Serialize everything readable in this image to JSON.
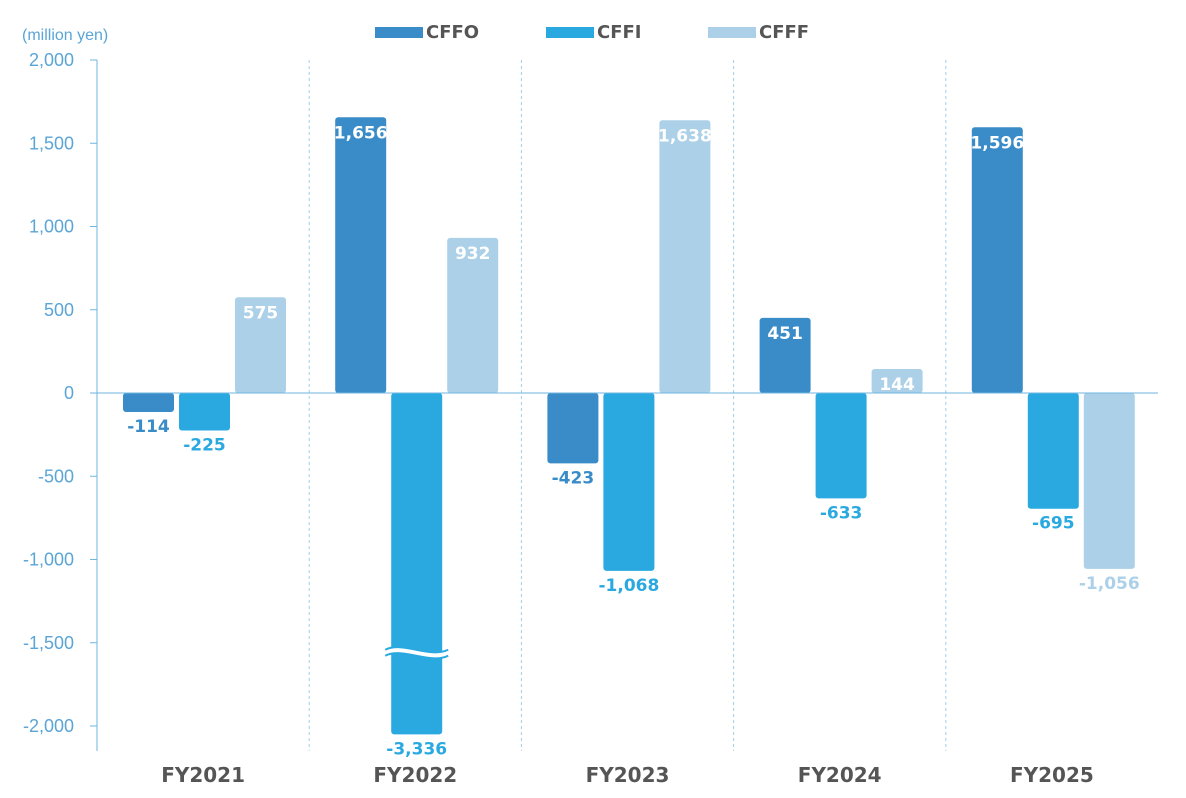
{
  "chart_data": {
    "type": "bar",
    "unit_label": "(million yen)",
    "categories": [
      "FY2021",
      "FY2022",
      "FY2023",
      "FY2024",
      "FY2025"
    ],
    "series": [
      {
        "name": "CFFO",
        "color": "#3a8cc8",
        "values": [
          -114,
          1656,
          -423,
          451,
          1596
        ]
      },
      {
        "name": "CFFI",
        "color": "#2aa9e1",
        "values": [
          -225,
          -3336,
          -1068,
          -633,
          -695
        ]
      },
      {
        "name": "CFFF",
        "color": "#abd0e8",
        "values": [
          575,
          932,
          1638,
          144,
          -1056
        ]
      }
    ],
    "data_labels": [
      [
        "-114",
        "1,656",
        "-423",
        "451",
        "1,596"
      ],
      [
        "-225",
        "-3,336",
        "-1,068",
        "-633",
        "-695"
      ],
      [
        "575",
        "932",
        "1,638",
        "144",
        "-1,056"
      ]
    ],
    "ylim": [
      -2150,
      2000
    ],
    "yticks": [
      2000,
      1500,
      1000,
      500,
      0,
      -500,
      -1000,
      -1500,
      -2000
    ],
    "ytick_labels": [
      "2,000",
      "1,500",
      "1,000",
      "500",
      "0",
      "-500",
      "-1,000",
      "-1,500",
      "-2,000"
    ],
    "axis_break": {
      "series": "CFFI",
      "category": "FY2022",
      "at_value": -1560,
      "drawn_to_value": -2050
    },
    "legend_position": "top-center",
    "grid": false,
    "category_separators": "dashed",
    "colors": {
      "axis": "#6fb6e1",
      "tick_label": "#5aa5d6",
      "category_label": "#555555",
      "separator": "#9fcfe9"
    }
  }
}
